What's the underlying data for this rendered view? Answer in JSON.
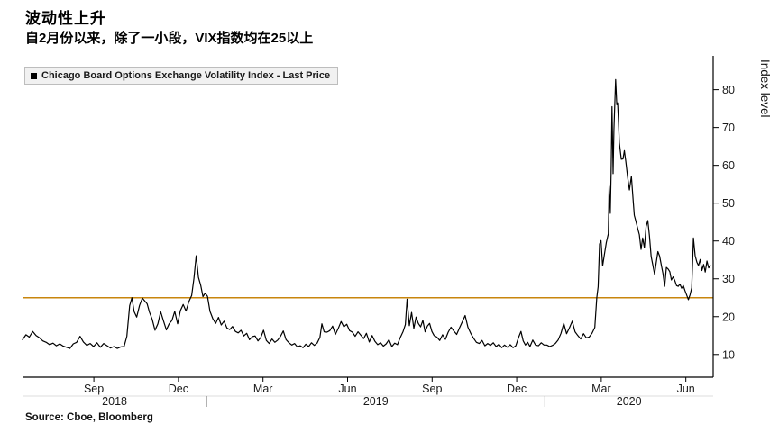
{
  "header": {
    "title": "波动性上升",
    "subtitle": "自2月份以来，除了一小段，VIX指数均在25以上"
  },
  "source": "Source: Cboe, Bloomberg",
  "chart_data": {
    "type": "line",
    "title": "波动性上升",
    "legend": "Chicago Board Options Exchange Volatility Index - Last Price",
    "legend_position": "top-left",
    "xlabel": "",
    "ylabel": "Index level",
    "ylim": [
      4,
      88
    ],
    "y_ticks": [
      10,
      20,
      30,
      40,
      50,
      60,
      70,
      80
    ],
    "grid": false,
    "x_unit": "months since 2018-06-15",
    "xlim": [
      0,
      24.5
    ],
    "x_ticks": [
      {
        "t": 2.53,
        "label": "Sep"
      },
      {
        "t": 5.53,
        "label": "Dec"
      },
      {
        "t": 8.53,
        "label": "Mar"
      },
      {
        "t": 11.53,
        "label": "Jun"
      },
      {
        "t": 14.53,
        "label": "Sep"
      },
      {
        "t": 17.53,
        "label": "Dec"
      },
      {
        "t": 20.53,
        "label": "Mar"
      },
      {
        "t": 23.53,
        "label": "Jun"
      }
    ],
    "year_boundaries": [
      6.53,
      18.53
    ],
    "year_labels": [
      "2018",
      "2019",
      "2020"
    ],
    "threshold": {
      "value": 25,
      "color": "#c8860d"
    },
    "line_color": "#000000",
    "axis_color": "#000000",
    "series": [
      {
        "name": "VIX Last Price",
        "points": [
          [
            0.0,
            13.9
          ],
          [
            0.12,
            15.2
          ],
          [
            0.24,
            14.6
          ],
          [
            0.36,
            16.1
          ],
          [
            0.48,
            15.0
          ],
          [
            0.6,
            14.4
          ],
          [
            0.72,
            13.6
          ],
          [
            0.84,
            13.2
          ],
          [
            0.96,
            12.6
          ],
          [
            1.08,
            13.0
          ],
          [
            1.2,
            12.3
          ],
          [
            1.32,
            12.8
          ],
          [
            1.44,
            12.2
          ],
          [
            1.56,
            11.9
          ],
          [
            1.68,
            11.6
          ],
          [
            1.8,
            12.8
          ],
          [
            1.92,
            13.2
          ],
          [
            2.04,
            14.8
          ],
          [
            2.16,
            13.3
          ],
          [
            2.28,
            12.4
          ],
          [
            2.4,
            12.9
          ],
          [
            2.52,
            12.1
          ],
          [
            2.64,
            13.1
          ],
          [
            2.76,
            11.9
          ],
          [
            2.88,
            12.9
          ],
          [
            3.0,
            12.3
          ],
          [
            3.12,
            11.7
          ],
          [
            3.24,
            12.1
          ],
          [
            3.36,
            11.6
          ],
          [
            3.48,
            12.0
          ],
          [
            3.6,
            12.1
          ],
          [
            3.7,
            14.8
          ],
          [
            3.8,
            22.9
          ],
          [
            3.88,
            25.0
          ],
          [
            3.96,
            21.3
          ],
          [
            4.05,
            19.9
          ],
          [
            4.15,
            23.0
          ],
          [
            4.25,
            24.9
          ],
          [
            4.33,
            24.2
          ],
          [
            4.42,
            23.4
          ],
          [
            4.5,
            21.2
          ],
          [
            4.6,
            19.3
          ],
          [
            4.7,
            16.4
          ],
          [
            4.8,
            18.1
          ],
          [
            4.9,
            21.3
          ],
          [
            5.0,
            18.9
          ],
          [
            5.1,
            16.5
          ],
          [
            5.2,
            18.1
          ],
          [
            5.3,
            19.0
          ],
          [
            5.4,
            21.4
          ],
          [
            5.5,
            18.1
          ],
          [
            5.6,
            21.6
          ],
          [
            5.7,
            23.2
          ],
          [
            5.8,
            21.5
          ],
          [
            5.9,
            24.0
          ],
          [
            6.0,
            25.6
          ],
          [
            6.08,
            30.1
          ],
          [
            6.16,
            36.1
          ],
          [
            6.24,
            30.4
          ],
          [
            6.32,
            28.3
          ],
          [
            6.4,
            25.3
          ],
          [
            6.48,
            26.2
          ],
          [
            6.56,
            25.4
          ],
          [
            6.65,
            21.4
          ],
          [
            6.75,
            19.5
          ],
          [
            6.85,
            18.2
          ],
          [
            6.95,
            19.8
          ],
          [
            7.05,
            17.8
          ],
          [
            7.15,
            18.8
          ],
          [
            7.25,
            17.0
          ],
          [
            7.35,
            16.6
          ],
          [
            7.45,
            17.4
          ],
          [
            7.55,
            16.1
          ],
          [
            7.65,
            15.7
          ],
          [
            7.75,
            16.4
          ],
          [
            7.85,
            14.9
          ],
          [
            7.95,
            15.6
          ],
          [
            8.05,
            13.9
          ],
          [
            8.15,
            14.7
          ],
          [
            8.25,
            14.9
          ],
          [
            8.35,
            13.6
          ],
          [
            8.45,
            14.5
          ],
          [
            8.55,
            16.4
          ],
          [
            8.65,
            13.7
          ],
          [
            8.75,
            12.9
          ],
          [
            8.85,
            14.1
          ],
          [
            8.95,
            13.2
          ],
          [
            9.05,
            13.8
          ],
          [
            9.15,
            14.8
          ],
          [
            9.25,
            16.2
          ],
          [
            9.35,
            13.9
          ],
          [
            9.45,
            13.1
          ],
          [
            9.55,
            12.5
          ],
          [
            9.65,
            12.9
          ],
          [
            9.75,
            12.0
          ],
          [
            9.85,
            12.3
          ],
          [
            9.95,
            11.8
          ],
          [
            10.05,
            12.7
          ],
          [
            10.15,
            12.1
          ],
          [
            10.25,
            13.1
          ],
          [
            10.35,
            12.4
          ],
          [
            10.45,
            13.0
          ],
          [
            10.55,
            14.5
          ],
          [
            10.62,
            18.1
          ],
          [
            10.7,
            16.0
          ],
          [
            10.8,
            15.9
          ],
          [
            10.9,
            16.3
          ],
          [
            11.0,
            17.5
          ],
          [
            11.1,
            15.3
          ],
          [
            11.2,
            16.9
          ],
          [
            11.3,
            18.7
          ],
          [
            11.4,
            17.3
          ],
          [
            11.5,
            18.0
          ],
          [
            11.6,
            16.3
          ],
          [
            11.7,
            15.9
          ],
          [
            11.8,
            14.8
          ],
          [
            11.9,
            16.0
          ],
          [
            12.0,
            15.1
          ],
          [
            12.1,
            14.2
          ],
          [
            12.2,
            15.6
          ],
          [
            12.3,
            13.3
          ],
          [
            12.4,
            15.0
          ],
          [
            12.5,
            13.5
          ],
          [
            12.6,
            12.6
          ],
          [
            12.7,
            13.1
          ],
          [
            12.8,
            12.2
          ],
          [
            12.9,
            12.8
          ],
          [
            13.0,
            13.9
          ],
          [
            13.1,
            12.1
          ],
          [
            13.2,
            13.0
          ],
          [
            13.3,
            12.6
          ],
          [
            13.4,
            14.5
          ],
          [
            13.5,
            16.1
          ],
          [
            13.58,
            17.9
          ],
          [
            13.64,
            24.6
          ],
          [
            13.72,
            17.6
          ],
          [
            13.8,
            21.1
          ],
          [
            13.88,
            16.9
          ],
          [
            13.96,
            19.9
          ],
          [
            14.04,
            18.2
          ],
          [
            14.12,
            17.3
          ],
          [
            14.2,
            19.0
          ],
          [
            14.28,
            16.0
          ],
          [
            14.36,
            17.5
          ],
          [
            14.44,
            18.2
          ],
          [
            14.52,
            16.1
          ],
          [
            14.6,
            15.0
          ],
          [
            14.7,
            14.6
          ],
          [
            14.8,
            13.7
          ],
          [
            14.9,
            15.2
          ],
          [
            15.0,
            14.0
          ],
          [
            15.1,
            15.9
          ],
          [
            15.2,
            17.2
          ],
          [
            15.3,
            16.2
          ],
          [
            15.4,
            15.3
          ],
          [
            15.5,
            17.0
          ],
          [
            15.6,
            18.6
          ],
          [
            15.7,
            20.3
          ],
          [
            15.8,
            17.2
          ],
          [
            15.9,
            15.6
          ],
          [
            16.0,
            14.3
          ],
          [
            16.1,
            13.2
          ],
          [
            16.2,
            12.9
          ],
          [
            16.3,
            13.7
          ],
          [
            16.4,
            12.3
          ],
          [
            16.5,
            12.9
          ],
          [
            16.6,
            12.4
          ],
          [
            16.7,
            13.1
          ],
          [
            16.8,
            12.1
          ],
          [
            16.9,
            12.7
          ],
          [
            17.0,
            11.8
          ],
          [
            17.1,
            12.5
          ],
          [
            17.2,
            11.9
          ],
          [
            17.3,
            12.6
          ],
          [
            17.4,
            11.8
          ],
          [
            17.5,
            12.3
          ],
          [
            17.6,
            14.6
          ],
          [
            17.68,
            16.1
          ],
          [
            17.76,
            13.6
          ],
          [
            17.84,
            12.5
          ],
          [
            17.92,
            13.2
          ],
          [
            18.0,
            12.1
          ],
          [
            18.1,
            13.8
          ],
          [
            18.2,
            12.5
          ],
          [
            18.3,
            12.3
          ],
          [
            18.4,
            13.1
          ],
          [
            18.5,
            12.5
          ],
          [
            18.6,
            12.5
          ],
          [
            18.7,
            12.1
          ],
          [
            18.8,
            12.4
          ],
          [
            18.9,
            12.9
          ],
          [
            19.0,
            13.8
          ],
          [
            19.1,
            15.6
          ],
          [
            19.2,
            18.2
          ],
          [
            19.3,
            15.5
          ],
          [
            19.4,
            17.0
          ],
          [
            19.5,
            18.8
          ],
          [
            19.6,
            16.0
          ],
          [
            19.7,
            15.0
          ],
          [
            19.8,
            14.1
          ],
          [
            19.9,
            15.5
          ],
          [
            20.0,
            14.4
          ],
          [
            20.1,
            14.6
          ],
          [
            20.2,
            15.6
          ],
          [
            20.3,
            17.1
          ],
          [
            20.37,
            25.0
          ],
          [
            20.42,
            27.9
          ],
          [
            20.47,
            39.2
          ],
          [
            20.52,
            40.1
          ],
          [
            20.58,
            33.4
          ],
          [
            20.65,
            36.8
          ],
          [
            20.71,
            39.6
          ],
          [
            20.78,
            41.9
          ],
          [
            20.81,
            54.5
          ],
          [
            20.85,
            47.3
          ],
          [
            20.88,
            57.8
          ],
          [
            20.91,
            75.5
          ],
          [
            20.95,
            57.8
          ],
          [
            20.98,
            69.3
          ],
          [
            21.04,
            82.7
          ],
          [
            21.08,
            76.0
          ],
          [
            21.11,
            76.5
          ],
          [
            21.14,
            72.0
          ],
          [
            21.17,
            66.0
          ],
          [
            21.24,
            61.6
          ],
          [
            21.3,
            61.7
          ],
          [
            21.35,
            63.9
          ],
          [
            21.4,
            61.0
          ],
          [
            21.46,
            57.1
          ],
          [
            21.53,
            53.5
          ],
          [
            21.6,
            57.1
          ],
          [
            21.66,
            50.9
          ],
          [
            21.7,
            46.8
          ],
          [
            21.76,
            45.2
          ],
          [
            21.82,
            43.4
          ],
          [
            21.88,
            41.7
          ],
          [
            21.94,
            37.8
          ],
          [
            22.0,
            40.8
          ],
          [
            22.06,
            38.2
          ],
          [
            22.12,
            43.8
          ],
          [
            22.18,
            45.4
          ],
          [
            22.24,
            41.4
          ],
          [
            22.3,
            35.9
          ],
          [
            22.36,
            33.6
          ],
          [
            22.42,
            31.2
          ],
          [
            22.48,
            34.2
          ],
          [
            22.54,
            37.2
          ],
          [
            22.6,
            36.0
          ],
          [
            22.66,
            33.6
          ],
          [
            22.72,
            31.4
          ],
          [
            22.78,
            28.0
          ],
          [
            22.84,
            33.0
          ],
          [
            22.9,
            32.6
          ],
          [
            22.96,
            31.9
          ],
          [
            23.02,
            29.7
          ],
          [
            23.08,
            30.5
          ],
          [
            23.14,
            29.5
          ],
          [
            23.2,
            28.2
          ],
          [
            23.26,
            28.0
          ],
          [
            23.32,
            28.6
          ],
          [
            23.38,
            27.5
          ],
          [
            23.44,
            28.2
          ],
          [
            23.5,
            26.9
          ],
          [
            23.56,
            25.7
          ],
          [
            23.62,
            24.5
          ],
          [
            23.68,
            25.8
          ],
          [
            23.74,
            27.6
          ],
          [
            23.8,
            40.8
          ],
          [
            23.86,
            36.1
          ],
          [
            23.92,
            34.4
          ],
          [
            23.98,
            33.5
          ],
          [
            24.04,
            35.1
          ],
          [
            24.1,
            32.2
          ],
          [
            24.16,
            33.8
          ],
          [
            24.22,
            31.8
          ],
          [
            24.28,
            34.7
          ],
          [
            24.34,
            32.9
          ],
          [
            24.4,
            33.5
          ]
        ]
      }
    ]
  }
}
